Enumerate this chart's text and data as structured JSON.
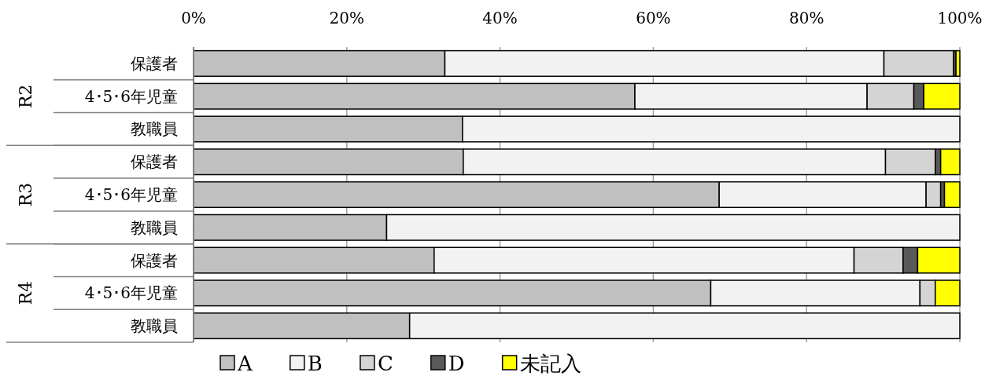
{
  "chart_data": {
    "type": "bar",
    "orientation": "horizontal",
    "stacked": true,
    "categories": [
      "保護者",
      "4･5･6年児童",
      "教職員",
      "保護者",
      "4･5･6年児童",
      "教職員",
      "保護者",
      "4･5･6年児童",
      "教職員"
    ],
    "annotations": [
      "R2",
      "R3",
      "R4"
    ],
    "series": [
      {
        "name": "A",
        "color": "#c0c0c0",
        "values": [
          32.8,
          57.6,
          35.1,
          35.2,
          68.6,
          25.2,
          31.4,
          67.5,
          28.2
        ]
      },
      {
        "name": "B",
        "color": "#f2f2f2",
        "values": [
          57.3,
          30.3,
          64.9,
          55.1,
          27.0,
          74.8,
          54.8,
          27.3,
          71.8
        ]
      },
      {
        "name": "C",
        "color": "#d4d4d4",
        "values": [
          9.1,
          6.1,
          0,
          6.5,
          1.9,
          0,
          6.4,
          2.0,
          0
        ]
      },
      {
        "name": "D",
        "color": "#595959",
        "values": [
          0.3,
          1.3,
          0,
          0.7,
          0.5,
          0,
          1.9,
          0,
          0
        ]
      },
      {
        "name": "未記入",
        "color": "#ffff00",
        "values": [
          0.5,
          4.7,
          0,
          2.5,
          2.0,
          0,
          5.5,
          3.2,
          0
        ]
      }
    ],
    "xlim": [
      0,
      100
    ],
    "xticks": [
      {
        "value": 0,
        "label": "0%"
      },
      {
        "value": 20,
        "label": "20%"
      },
      {
        "value": 40,
        "label": "40%"
      },
      {
        "value": 60,
        "label": "60%"
      },
      {
        "value": 80,
        "label": "80%"
      },
      {
        "value": 100,
        "label": "100%"
      }
    ],
    "grid": "x",
    "legend": "bottom"
  }
}
